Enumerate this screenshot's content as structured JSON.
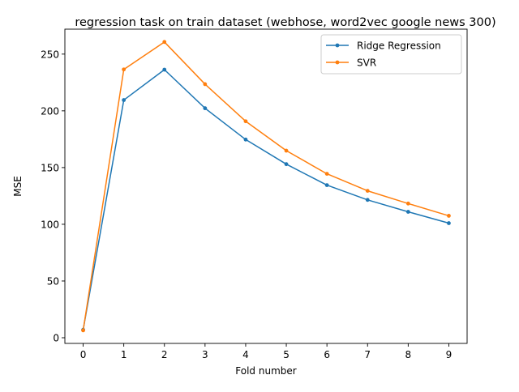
{
  "chart_data": {
    "type": "line",
    "title": "regression task on train dataset (webhose, word2vec google news 300)",
    "xlabel": "Fold number",
    "ylabel": "MSE",
    "x": [
      0,
      1,
      2,
      3,
      4,
      5,
      6,
      7,
      8,
      9
    ],
    "xticks": [
      "0",
      "1",
      "2",
      "3",
      "4",
      "5",
      "6",
      "7",
      "8",
      "9"
    ],
    "yticks": [
      "0",
      "50",
      "100",
      "150",
      "200",
      "250"
    ],
    "xlim": [
      -0.45,
      9.45
    ],
    "ylim": [
      -5,
      272
    ],
    "grid": false,
    "legend_position": "top-right",
    "series": [
      {
        "name": "Ridge Regression",
        "color": "#1f77b4",
        "marker": "point",
        "values": [
          7,
          209.5,
          236.3,
          202.3,
          174.7,
          153,
          134.5,
          121.5,
          111,
          101
        ]
      },
      {
        "name": "SVR",
        "color": "#ff7f0e",
        "marker": "point",
        "values": [
          6.5,
          236.5,
          260.7,
          223.5,
          190.8,
          164.9,
          144.5,
          129.5,
          118.3,
          107.5
        ]
      }
    ]
  }
}
